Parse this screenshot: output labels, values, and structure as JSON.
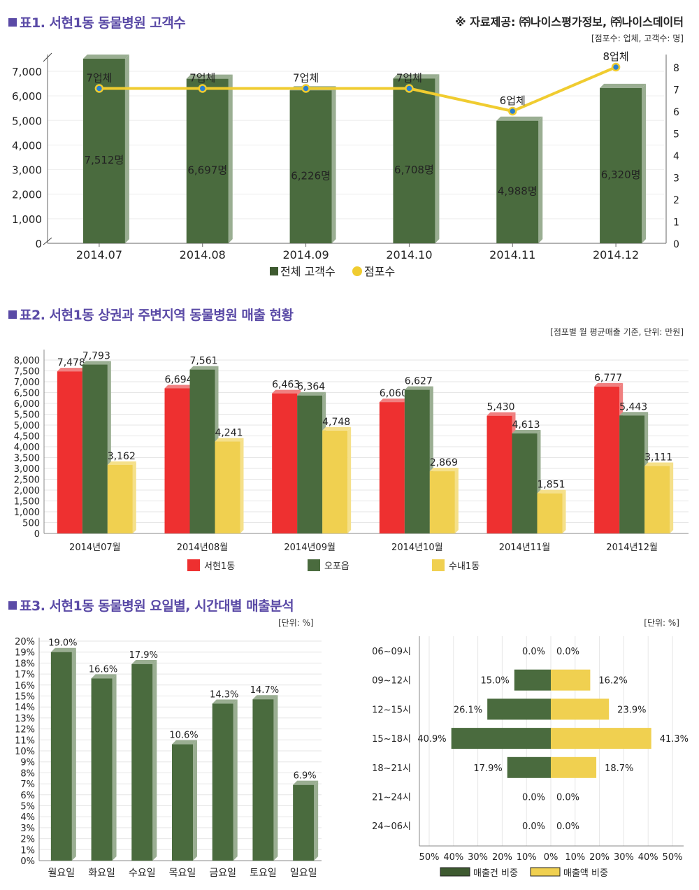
{
  "header": {
    "source": "※ 자료제공: ㈜나이스평가정보, ㈜나이스데이터"
  },
  "sections": [
    {
      "title": "표1. 서현1동 동물병원 고객수",
      "note": "[점포수: 업체, 고객수: 명]"
    },
    {
      "title": "표2. 서현1동 상권과 주변지역 동물병원 매출 현황",
      "note": "[점포별 월 평균매출 기준, 단위: 만원]"
    },
    {
      "title": "표3. 서현1동 동물병원 요일별, 시간대별 매출분석",
      "note_left": "[단위: %]",
      "note_right": "[단위: %]"
    }
  ],
  "colors": {
    "title": "#5a4aa6",
    "green": "#4a6b3e",
    "green_side": "#9aae92",
    "red": "#ee3030",
    "red_side": "#f08080",
    "yellow": "#f0d050",
    "yellow_side": "#f5e08a",
    "line": "#f0cc30"
  },
  "chart_data": [
    {
      "type": "bar+line",
      "title": "표1. 서현1동 동물병원 고객수",
      "categories": [
        "2014.07",
        "2014.08",
        "2014.09",
        "2014.10",
        "2014.11",
        "2014.12"
      ],
      "series": [
        {
          "name": "전체 고객수",
          "type": "bar",
          "axis": "left",
          "values": [
            7512,
            6697,
            6226,
            6708,
            4988,
            6320
          ],
          "labels": [
            "7,512명",
            "6,697명",
            "6,226명",
            "6,708명",
            "4,988명",
            "6,320명"
          ]
        },
        {
          "name": "점포수",
          "type": "line",
          "axis": "right",
          "values": [
            7,
            7,
            7,
            7,
            6,
            8
          ],
          "labels": [
            "7업체",
            "7업체",
            "7업체",
            "7업체",
            "6업체",
            "8업체"
          ]
        }
      ],
      "y_left": {
        "min": 0,
        "max": 7000,
        "ticks": [
          "0",
          "1,000",
          "2,000",
          "3,000",
          "4,000",
          "5,000",
          "6,000",
          "7,000"
        ]
      },
      "y_right": {
        "min": 0,
        "max": 8,
        "ticks": [
          "0",
          "1",
          "2",
          "3",
          "4",
          "5",
          "6",
          "7",
          "8"
        ]
      },
      "legend": [
        "전체 고객수",
        "점포수"
      ],
      "legend_position": "bottom"
    },
    {
      "type": "bar",
      "title": "표2. 서현1동 상권과 주변지역 동물병원 매출 현황",
      "categories": [
        "2014년07월",
        "2014년08월",
        "2014년09월",
        "2014년10월",
        "2014년11월",
        "2014년12월"
      ],
      "series": [
        {
          "name": "서현1동",
          "values": [
            7478,
            6694,
            6463,
            6060,
            5430,
            6777
          ]
        },
        {
          "name": "오포읍",
          "values": [
            7793,
            7561,
            6364,
            6627,
            4613,
            5443
          ]
        },
        {
          "name": "수내1동",
          "values": [
            3162,
            4241,
            4748,
            2869,
            1851,
            3111
          ]
        }
      ],
      "ylim": [
        0,
        8000
      ],
      "yticks": [
        "0",
        "500",
        "1,000",
        "1,500",
        "2,000",
        "2,500",
        "3,000",
        "3,500",
        "4,000",
        "4,500",
        "5,000",
        "5,500",
        "6,000",
        "6,500",
        "7,000",
        "7,500",
        "8,000"
      ],
      "legend_position": "bottom"
    },
    {
      "type": "bar",
      "title": "요일별 매출 비중",
      "categories": [
        "월요일",
        "화요일",
        "수요일",
        "목요일",
        "금요일",
        "토요일",
        "일요일"
      ],
      "values": [
        19.0,
        16.6,
        17.9,
        10.6,
        14.3,
        14.7,
        6.9
      ],
      "labels": [
        "19.0%",
        "16.6%",
        "17.9%",
        "10.6%",
        "14.3%",
        "14.7%",
        "6.9%"
      ],
      "ylim": [
        0,
        20
      ],
      "yticks": [
        "0%",
        "1%",
        "2%",
        "3%",
        "4%",
        "5%",
        "6%",
        "7%",
        "8%",
        "9%",
        "10%",
        "11%",
        "12%",
        "13%",
        "14%",
        "15%",
        "16%",
        "17%",
        "18%",
        "19%",
        "20%"
      ]
    },
    {
      "type": "bar",
      "orientation": "horizontal-diverging",
      "title": "시간대별 매출 비중",
      "categories": [
        "06~09시",
        "09~12시",
        "12~15시",
        "15~18시",
        "18~21시",
        "21~24시",
        "24~06시"
      ],
      "series": [
        {
          "name": "매출건 비중",
          "side": "left",
          "values": [
            0.0,
            15.0,
            26.1,
            40.9,
            17.9,
            0.0,
            0.0
          ],
          "labels": [
            "0.0%",
            "15.0%",
            "26.1%",
            "40.9%",
            "17.9%",
            "0.0%",
            "0.0%"
          ]
        },
        {
          "name": "매출액 비중",
          "side": "right",
          "values": [
            0.0,
            16.2,
            23.9,
            41.3,
            18.7,
            0.0,
            0.0
          ],
          "labels": [
            "0.0%",
            "16.2%",
            "23.9%",
            "41.3%",
            "18.7%",
            "0.0%",
            "0.0%"
          ]
        }
      ],
      "xlim": [
        -50,
        50
      ],
      "xticks": [
        "50%",
        "40%",
        "30%",
        "20%",
        "10%",
        "0%",
        "10%",
        "20%",
        "30%",
        "40%",
        "50%"
      ],
      "legend_position": "bottom"
    }
  ]
}
